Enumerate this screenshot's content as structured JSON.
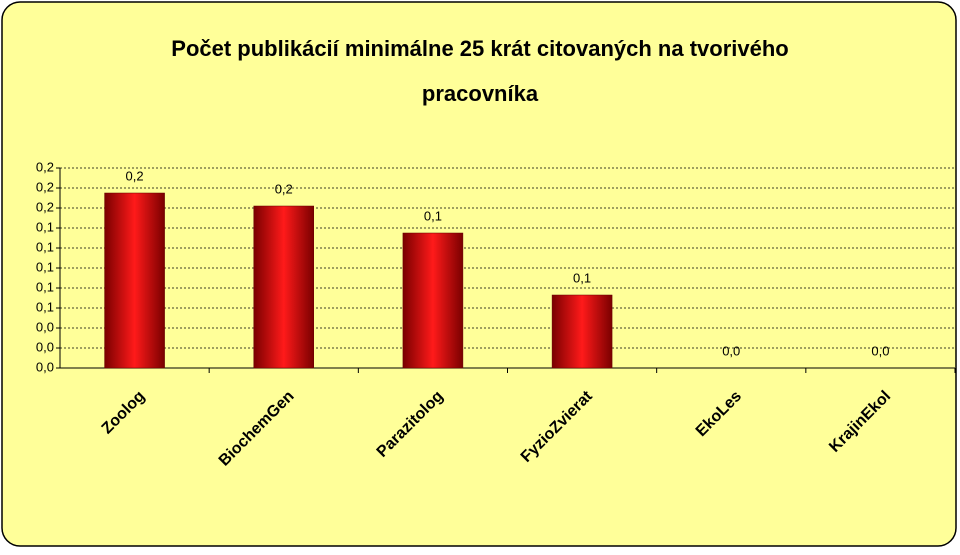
{
  "chart_data": {
    "type": "bar",
    "title": "Počet publikácií minimálne 25 krát citovaných na tvorivého pracovníka",
    "categories": [
      "Zoolog",
      "BiochemGen",
      "Parazitolog",
      "FyzioZvierat",
      "EkoLes",
      "KrajinEkol"
    ],
    "values": [
      0.175,
      0.162,
      0.135,
      0.073,
      0,
      0
    ],
    "value_labels": [
      "0,2",
      "0,2",
      "0,1",
      "0,1",
      "0,0",
      "0,0"
    ],
    "color": "#e00000",
    "ylim": [
      0,
      0.2
    ],
    "yticks": [
      {
        "value": 0,
        "label": "0,0"
      },
      {
        "value": 0.02,
        "label": "0,0"
      },
      {
        "value": 0.04,
        "label": "0,0"
      },
      {
        "value": 0.06,
        "label": "0,1"
      },
      {
        "value": 0.08,
        "label": "0,1"
      },
      {
        "value": 0.1,
        "label": "0,1"
      },
      {
        "value": 0.12,
        "label": "0,1"
      },
      {
        "value": 0.14,
        "label": "0,1"
      },
      {
        "value": 0.16,
        "label": "0,2"
      },
      {
        "value": 0.18,
        "label": "0,2"
      },
      {
        "value": 0.2,
        "label": "0,2"
      }
    ],
    "grid": true
  }
}
